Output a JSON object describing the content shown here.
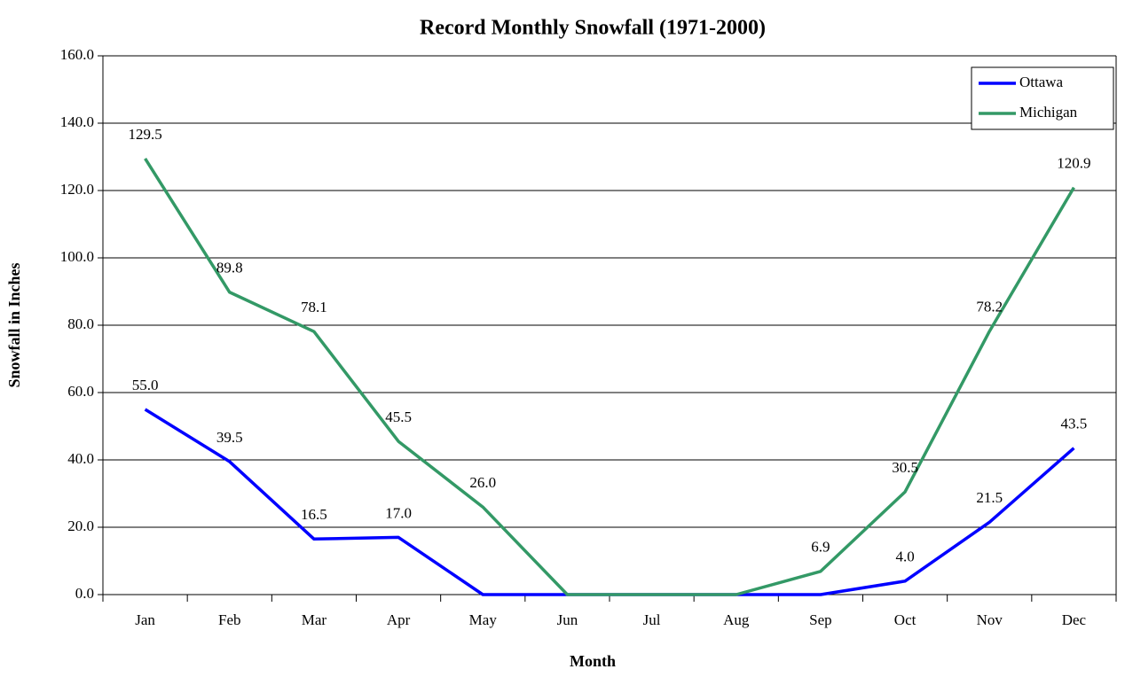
{
  "chart_data": {
    "type": "line",
    "title": "Record Monthly Snowfall (1971-2000)",
    "x_label": "Month",
    "y_label": "Snowfall in Inches",
    "categories": [
      "Jan",
      "Feb",
      "Mar",
      "Apr",
      "May",
      "Jun",
      "Jul",
      "Aug",
      "Sep",
      "Oct",
      "Nov",
      "Dec"
    ],
    "series": [
      {
        "name": "Ottawa",
        "color": "#0000ff",
        "values": [
          55.0,
          39.5,
          16.5,
          17.0,
          0,
          0,
          0,
          0,
          0,
          4.0,
          21.5,
          43.5
        ],
        "value_labels": [
          "55.0",
          "39.5",
          "16.5",
          "17.0",
          null,
          null,
          null,
          null,
          null,
          "4.0",
          "21.5",
          "43.5"
        ]
      },
      {
        "name": "Michigan",
        "color": "#339966",
        "values": [
          129.5,
          89.8,
          78.1,
          45.5,
          26.0,
          0,
          0,
          0,
          6.9,
          30.5,
          78.2,
          120.9
        ],
        "value_labels": [
          "129.5",
          "89.8",
          "78.1",
          "45.5",
          "26.0",
          null,
          null,
          null,
          "6.9",
          "30.5",
          "78.2",
          "120.9"
        ]
      }
    ],
    "ylim": [
      0,
      160
    ],
    "yticks": [
      {
        "value": 0,
        "label": "0.0"
      },
      {
        "value": 20,
        "label": "20.0"
      },
      {
        "value": 40,
        "label": "40.0"
      },
      {
        "value": 60,
        "label": "60.0"
      },
      {
        "value": 80,
        "label": "80.0"
      },
      {
        "value": 100,
        "label": "100.0"
      },
      {
        "value": 120,
        "label": "120.0"
      },
      {
        "value": 140,
        "label": "140.0"
      },
      {
        "value": 160,
        "label": "160.0"
      }
    ],
    "grid": true,
    "legend": "top-right"
  }
}
